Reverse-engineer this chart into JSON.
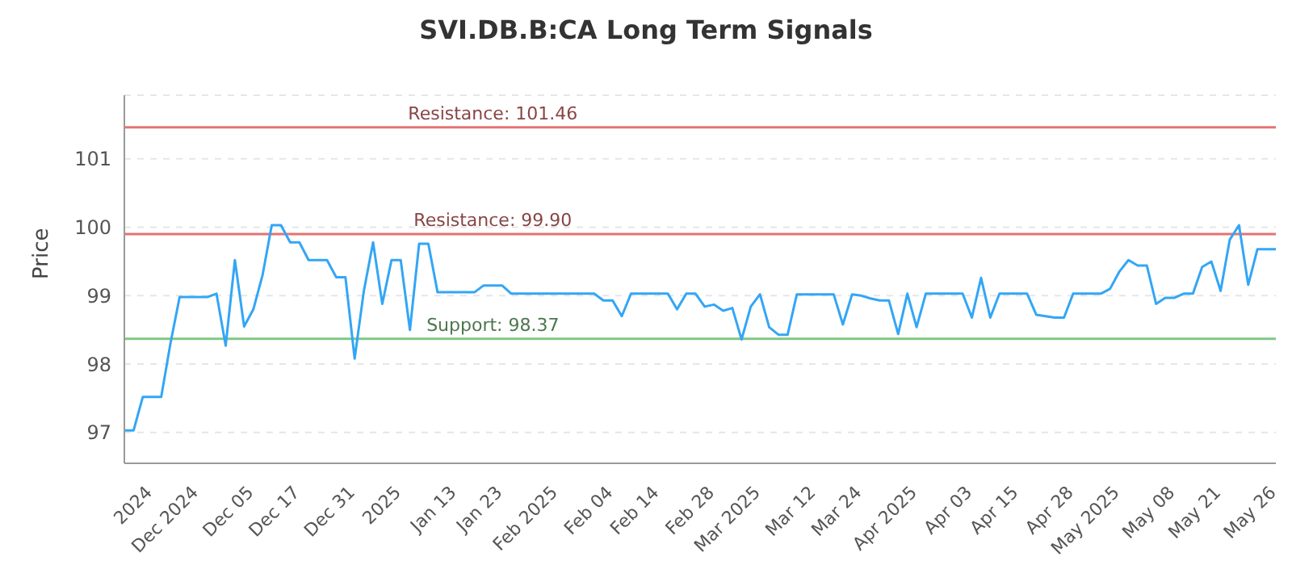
{
  "chart_data": {
    "type": "line",
    "title": "SVI.DB.B:CA Long Term Signals",
    "ylabel": "Price",
    "categories": [
      null,
      null,
      null,
      "2024",
      null,
      null,
      null,
      null,
      "Dec 2024",
      null,
      null,
      null,
      null,
      null,
      "Dec 05",
      null,
      null,
      null,
      null,
      "Dec 17",
      null,
      null,
      null,
      null,
      null,
      "Dec 31",
      null,
      null,
      null,
      null,
      "2025",
      null,
      null,
      null,
      null,
      null,
      "Jan 13",
      null,
      null,
      null,
      null,
      "Jan 23",
      null,
      null,
      null,
      null,
      null,
      "Feb 2025",
      null,
      null,
      null,
      null,
      null,
      "Feb 04",
      null,
      null,
      null,
      null,
      "Feb 14",
      null,
      null,
      null,
      null,
      null,
      "Feb 28",
      null,
      null,
      null,
      null,
      "Mar 2025",
      null,
      null,
      null,
      null,
      null,
      "Mar 12",
      null,
      null,
      null,
      null,
      "Mar 24",
      null,
      null,
      null,
      null,
      null,
      "Apr 2025",
      null,
      null,
      null,
      null,
      null,
      "Apr 03",
      null,
      null,
      null,
      null,
      "Apr 15",
      null,
      null,
      null,
      null,
      null,
      "Apr 28",
      null,
      null,
      null,
      null,
      "May 2025",
      null,
      null,
      null,
      null,
      null,
      "May 08",
      null,
      null,
      null,
      null,
      "May 21",
      null,
      null,
      null,
      null,
      null,
      "May 26"
    ],
    "series": [
      {
        "color": "#33a6f5",
        "values": [
          97.03,
          97.03,
          97.52,
          97.52,
          97.52,
          98.3,
          98.98,
          98.98,
          98.98,
          98.98,
          99.03,
          98.27,
          99.52,
          98.55,
          98.8,
          99.3,
          100.03,
          100.03,
          99.78,
          99.78,
          99.52,
          99.52,
          99.52,
          99.27,
          99.27,
          98.08,
          99.07,
          99.78,
          98.88,
          99.52,
          99.52,
          98.5,
          99.76,
          99.76,
          99.05,
          99.05,
          99.05,
          99.05,
          99.05,
          99.15,
          99.15,
          99.15,
          99.03,
          99.03,
          99.03,
          99.03,
          99.03,
          99.03,
          99.03,
          99.03,
          99.03,
          99.03,
          98.93,
          98.93,
          98.7,
          99.03,
          99.03,
          99.03,
          99.03,
          99.03,
          98.8,
          99.03,
          99.03,
          98.84,
          98.87,
          98.78,
          98.82,
          98.36,
          98.84,
          99.02,
          98.54,
          98.43,
          98.43,
          99.02,
          99.02,
          99.02,
          99.02,
          99.02,
          98.58,
          99.02,
          99.0,
          98.96,
          98.93,
          98.93,
          98.44,
          99.03,
          98.54,
          99.03,
          99.03,
          99.03,
          99.03,
          99.03,
          98.68,
          99.26,
          98.68,
          99.03,
          99.03,
          99.03,
          99.03,
          98.72,
          98.7,
          98.68,
          98.68,
          99.03,
          99.03,
          99.03,
          99.03,
          99.1,
          99.35,
          99.52,
          99.44,
          99.44,
          98.88,
          98.97,
          98.97,
          99.03,
          99.03,
          99.42,
          99.5,
          99.07,
          99.82,
          100.03,
          99.16,
          99.68,
          99.68,
          99.68
        ]
      }
    ],
    "ylim": [
      96.55,
      101.93
    ],
    "yticks": [
      97,
      98,
      99,
      100,
      101
    ],
    "grid": "y",
    "marker": "none",
    "line_style": "solid",
    "legend": false,
    "ref_lines": [
      {
        "axis": "y",
        "value": 101.46,
        "label": "Resistance: 101.46",
        "color": "#e57373"
      },
      {
        "axis": "y",
        "value": 99.9,
        "label": "Resistance: 99.90",
        "color": "#e57373"
      },
      {
        "axis": "y",
        "value": 98.37,
        "label": "Support: 98.37",
        "color": "#81c784"
      }
    ]
  }
}
